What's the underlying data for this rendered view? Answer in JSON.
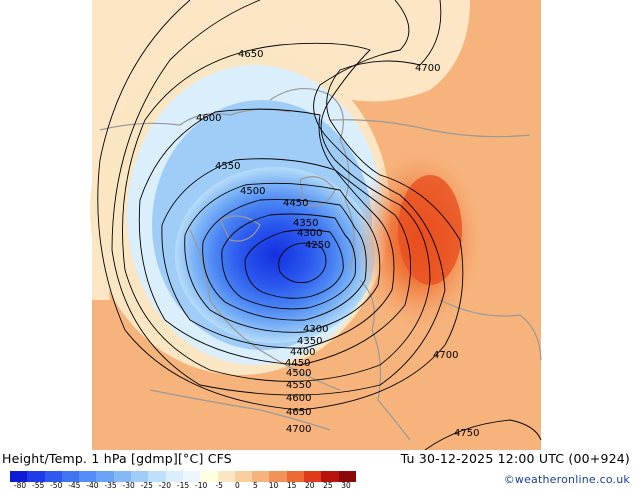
{
  "header": {
    "title": "Height/Temp. 1 hPa [gdmp][°C] CFS",
    "datetime": "Tu 30-12-2025 12:00 UTC (00+924)",
    "credit": "©weatheronline.co.uk"
  },
  "colorbar": {
    "labels": [
      "-80",
      "-55",
      "-50",
      "-45",
      "-40",
      "-35",
      "-30",
      "-25",
      "-20",
      "-15",
      "-10",
      "-5",
      "0",
      "5",
      "10",
      "15",
      "20",
      "25",
      "30"
    ],
    "colors": [
      "#0b1bd6",
      "#1e3be8",
      "#2f5af0",
      "#3f74f3",
      "#548cf5",
      "#6aa3f6",
      "#84b8f7",
      "#a0cdf8",
      "#bfe0fa",
      "#daeefc",
      "#eef6fd",
      "#fffde0",
      "#fbe6c3",
      "#f9cfa0",
      "#f6b47c",
      "#f39258",
      "#ee6a34",
      "#e03a1a",
      "#b8140c",
      "#8c0808"
    ]
  },
  "contours": [
    {
      "label": "4650"
    },
    {
      "label": "4700"
    },
    {
      "label": "4600"
    },
    {
      "label": "4550"
    },
    {
      "label": "4500"
    },
    {
      "label": "4450"
    },
    {
      "label": "4350"
    },
    {
      "label": "4300"
    },
    {
      "label": "4250"
    },
    {
      "label": "4300"
    },
    {
      "label": "4350"
    },
    {
      "label": "4400"
    },
    {
      "label": "4450"
    },
    {
      "label": "4500"
    },
    {
      "label": "4550"
    },
    {
      "label": "4600"
    },
    {
      "label": "4650"
    },
    {
      "label": "4700"
    },
    {
      "label": "4700"
    },
    {
      "label": "4750"
    }
  ]
}
